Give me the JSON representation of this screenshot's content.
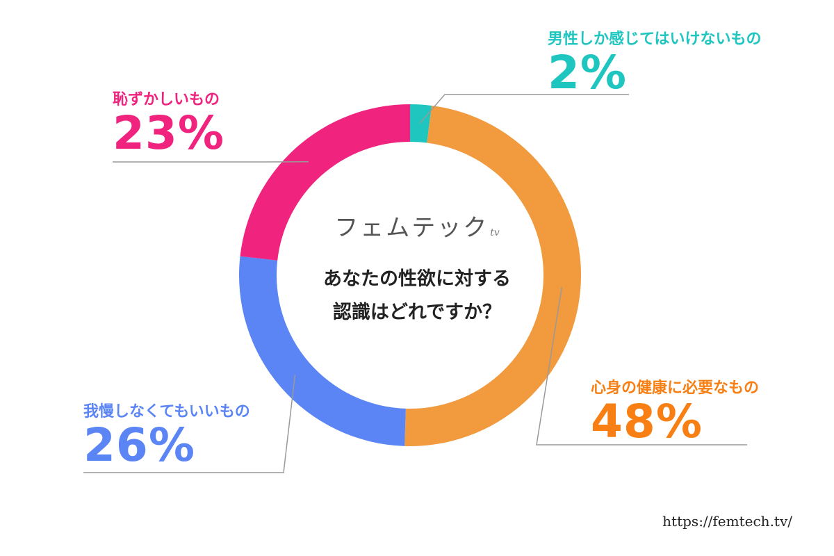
{
  "chart_data": {
    "type": "pie",
    "variant": "donut",
    "categories": [
      "男性しか感じてはいけないもの",
      "心身の健康に必要なもの",
      "我慢しなくてもいいもの",
      "恥ずかしいもの"
    ],
    "values": [
      2,
      48,
      26,
      23
    ],
    "value_labels": [
      "2%",
      "48%",
      "26%",
      "23%"
    ],
    "colors": [
      "#1fc6c0",
      "#f19a3e",
      "#5b85f5",
      "#f0237e"
    ],
    "text_colors": [
      "#1fc6c0",
      "#f77f13",
      "#5b85f5",
      "#f0237e"
    ],
    "center_brand": "フェムテック",
    "center_brand_suffix": "tv",
    "center_question_line1": "あなたの性欲に対する",
    "center_question_line2": "認識はどれですか？"
  },
  "footer": {
    "url": "https://femtech.tv/"
  }
}
